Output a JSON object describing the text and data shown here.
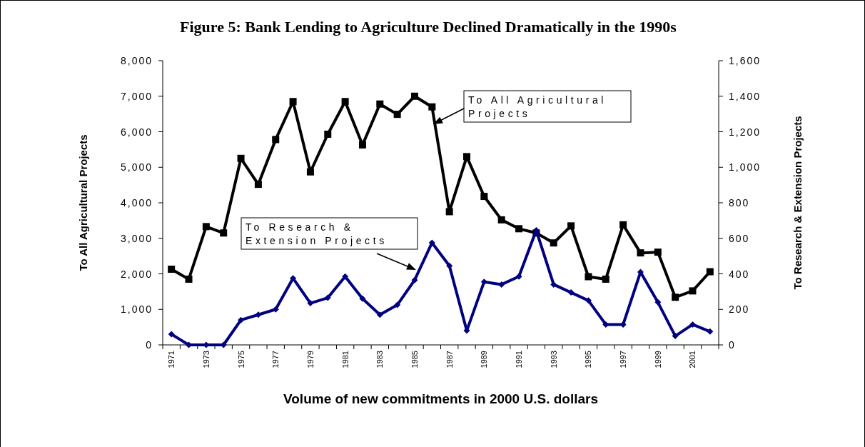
{
  "chart_data": {
    "type": "line",
    "title": "Figure 5: Bank Lending to Agriculture Declined Dramatically in the 1990s",
    "xlabel": "Volume of new commitments in 2000 U.S. dollars",
    "ylabel": "To All Agricultural Projects",
    "y2label": "To Research & Extension Projects",
    "categories": [
      "1971",
      null,
      "1973",
      null,
      "1975",
      null,
      "1977",
      null,
      "1979",
      null,
      "1981",
      null,
      "1983",
      null,
      "1985",
      null,
      "1987",
      null,
      "1989",
      null,
      "1991",
      null,
      "1993",
      null,
      "1995",
      null,
      "1997",
      null,
      "1999",
      null,
      "2001",
      null
    ],
    "series": [
      {
        "color": "#000000",
        "marker": "square",
        "values": [
          2130,
          1850,
          3330,
          3150,
          5250,
          4520,
          5780,
          6850,
          4870,
          5930,
          6850,
          5630,
          6780,
          6490,
          7000,
          6700,
          3750,
          5300,
          4180,
          3520,
          3270,
          3150,
          2870,
          3350,
          1920,
          1850,
          3380,
          2590,
          2610,
          1340,
          1520,
          2060
        ]
      },
      {
        "color": "#000080",
        "marker": "diamond",
        "axis": "y2",
        "values": [
          60,
          0,
          0,
          0,
          140,
          170,
          200,
          375,
          235,
          265,
          385,
          260,
          170,
          225,
          365,
          575,
          445,
          80,
          355,
          340,
          385,
          645,
          340,
          295,
          250,
          115,
          115,
          410,
          240,
          50,
          115,
          75
        ]
      }
    ],
    "ylim": [
      0,
      8000
    ],
    "yticks": [
      {
        "value": 0,
        "label": "0"
      },
      {
        "value": 1000,
        "label": "1,000"
      },
      {
        "value": 2000,
        "label": "2,000"
      },
      {
        "value": 3000,
        "label": "3,000"
      },
      {
        "value": 4000,
        "label": "4,000"
      },
      {
        "value": 5000,
        "label": "5,000"
      },
      {
        "value": 6000,
        "label": "6,000"
      },
      {
        "value": 7000,
        "label": "7,000"
      },
      {
        "value": 8000,
        "label": "8,000"
      }
    ],
    "annotations": [
      "To All Agricultural Projects",
      "To Research & Extension Projects"
    ],
    "y2lim": [
      0,
      1600
    ],
    "y2ticks": [
      {
        "value": 0,
        "label": "0"
      },
      {
        "value": 200,
        "label": "200"
      },
      {
        "value": 400,
        "label": "400"
      },
      {
        "value": 600,
        "label": "600"
      },
      {
        "value": 800,
        "label": "800"
      },
      {
        "value": 1000,
        "label": "1,000"
      },
      {
        "value": 1200,
        "label": "1,200"
      },
      {
        "value": 1400,
        "label": "1,400"
      },
      {
        "value": 1600,
        "label": "1,600"
      }
    ]
  }
}
